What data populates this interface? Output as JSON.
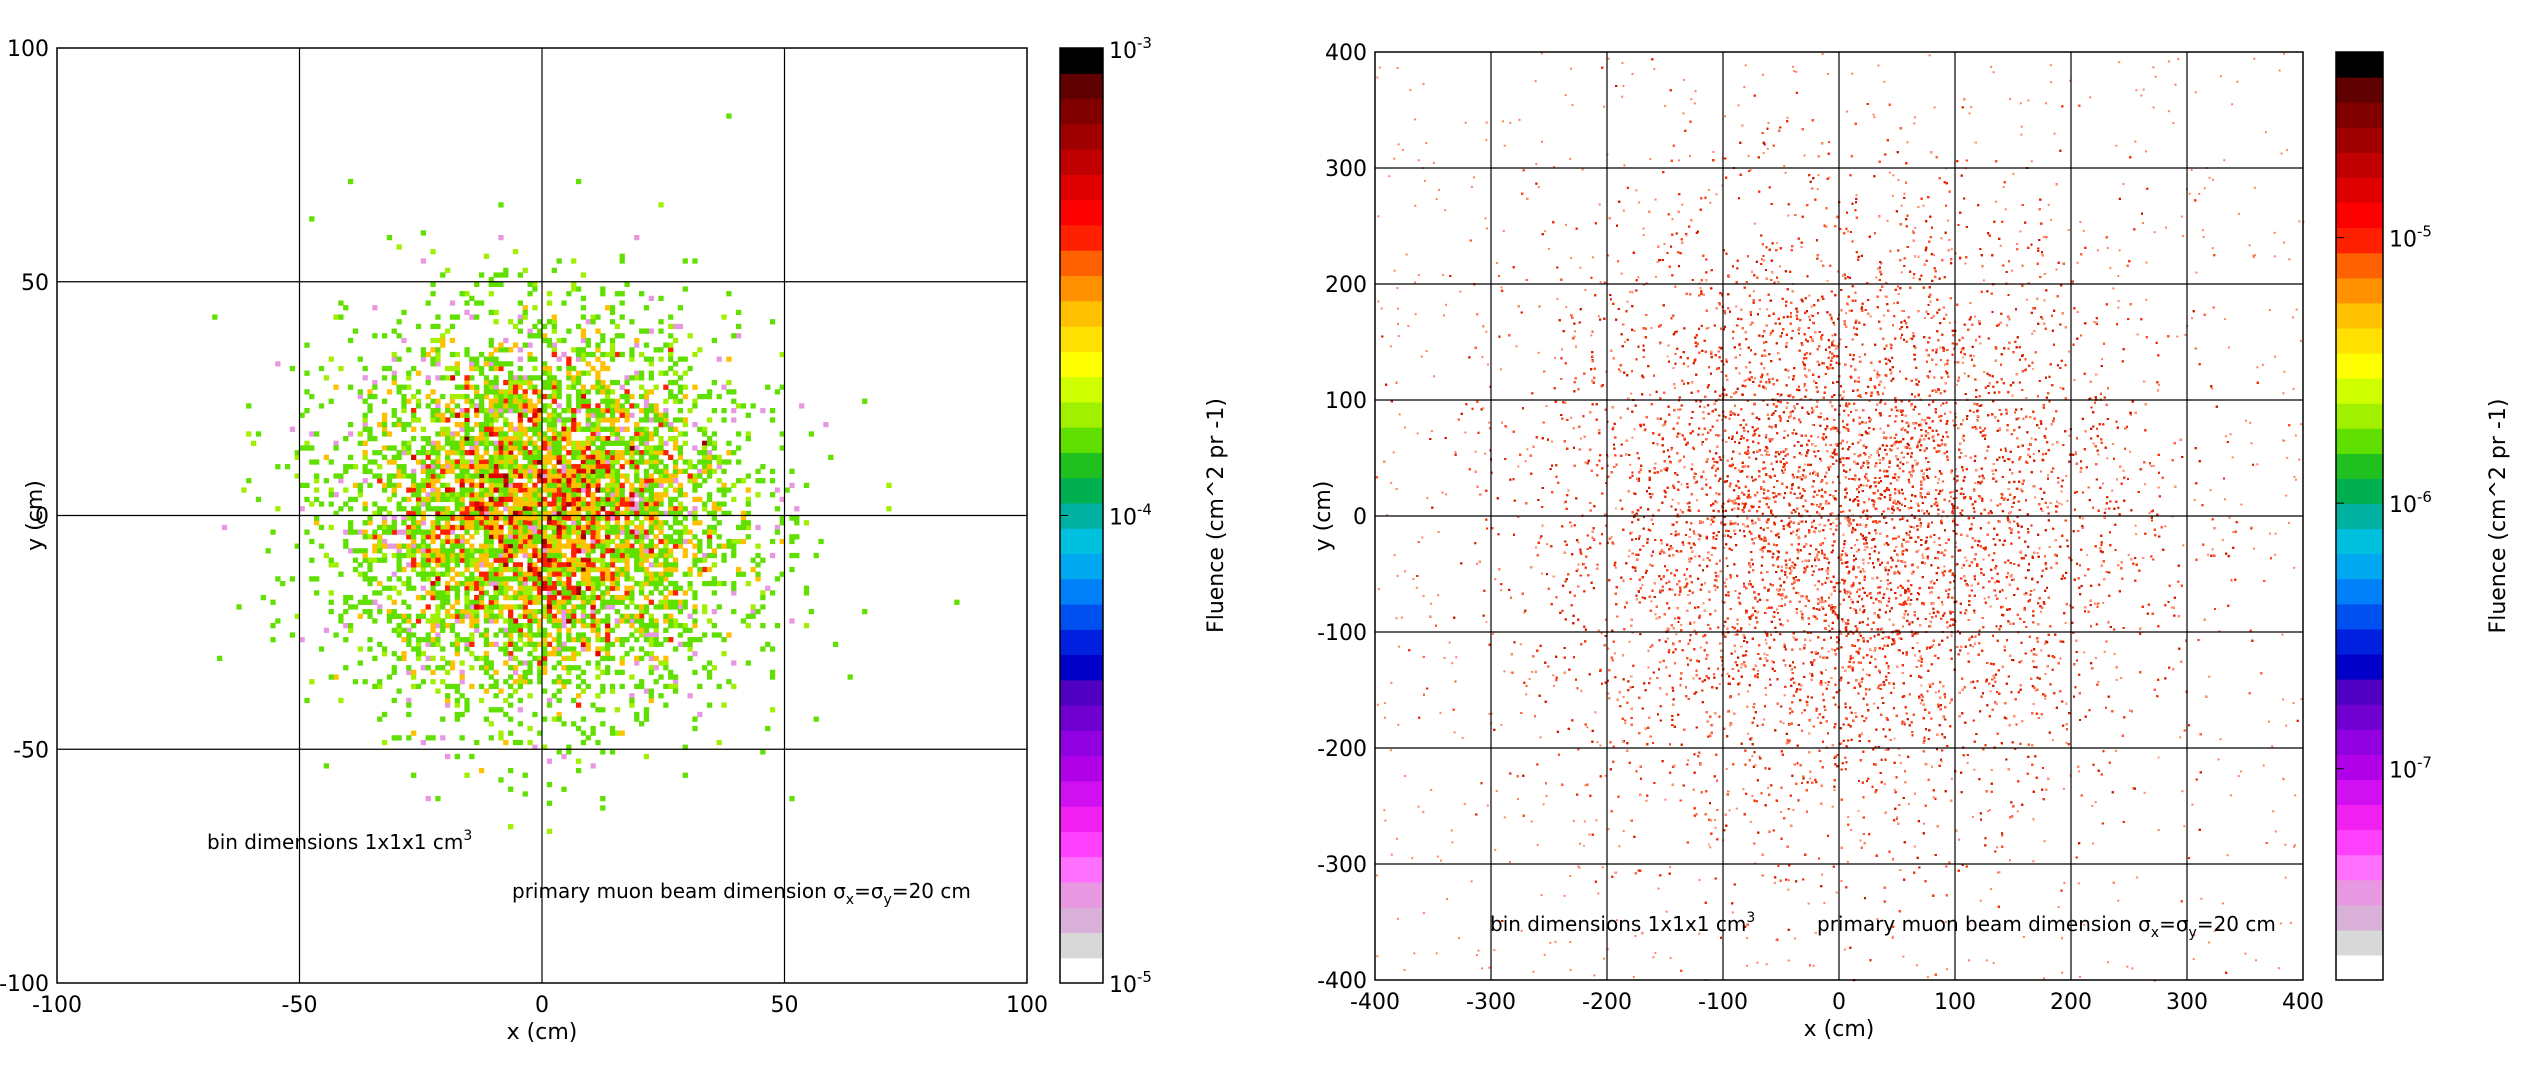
{
  "chart_data": [
    {
      "type": "heatmap",
      "xlabel": "x (cm)",
      "ylabel": "y (cm)",
      "xlim": [
        -100,
        100
      ],
      "ylim": [
        -100,
        100
      ],
      "xticks": [
        "-100",
        "-50",
        "0",
        "50",
        "100"
      ],
      "xtick_values": [
        -100,
        -50,
        0,
        50,
        100
      ],
      "yticks": [
        "-100",
        "-50",
        "0",
        "50",
        "100"
      ],
      "ytick_values": [
        -100,
        -50,
        0,
        50,
        100
      ],
      "grid": true,
      "distribution": {
        "shape": "gaussian",
        "center": [
          0,
          0
        ],
        "sigma_cm": 20,
        "bin_cm": 1
      },
      "colorbar": {
        "label": "Fluence (cm^2 pr -1)",
        "scale": "log",
        "range": [
          1e-05,
          0.001
        ],
        "tick_labels": [
          {
            "base": "10",
            "exp": "-3",
            "value": 0.001
          },
          {
            "base": "10",
            "exp": "-4",
            "value": 0.0001
          },
          {
            "base": "10",
            "exp": "-5",
            "value": 1e-05
          }
        ]
      },
      "annotations": {
        "bin_prefix": "bin dimensions 1x1x1 cm",
        "bin_sup": "3",
        "beam_prefix": "primary muon beam dimension σ",
        "beam_sub_x": "x",
        "beam_eq": "=σ",
        "beam_sub_y": "y",
        "beam_suffix": "=20 cm"
      }
    },
    {
      "type": "heatmap",
      "xlabel": "x (cm)",
      "ylabel": "y (cm)",
      "xlim": [
        -400,
        400
      ],
      "ylim": [
        -400,
        400
      ],
      "xticks": [
        "-400",
        "-300",
        "-200",
        "-100",
        "0",
        "100",
        "200",
        "300",
        "400"
      ],
      "xtick_values": [
        -400,
        -300,
        -200,
        -100,
        0,
        100,
        200,
        300,
        400
      ],
      "yticks": [
        "-400",
        "-300",
        "-200",
        "-100",
        "0",
        "100",
        "200",
        "300",
        "400"
      ],
      "ytick_values": [
        -400,
        -300,
        -200,
        -100,
        0,
        100,
        200,
        300,
        400
      ],
      "grid": true,
      "distribution": {
        "shape": "gaussian-sparse",
        "center": [
          0,
          0
        ],
        "sigma_cm": 130,
        "bin_cm": 1
      },
      "colorbar": {
        "label": "Fluence (cm^2 pr -1)",
        "scale": "log",
        "range": [
          1.6e-08,
          5e-05
        ],
        "tick_labels": [
          {
            "base": "10",
            "exp": "-5",
            "value": 1e-05
          },
          {
            "base": "10",
            "exp": "-6",
            "value": 1e-06
          },
          {
            "base": "10",
            "exp": "-7",
            "value": 1e-07
          }
        ]
      },
      "annotations": {
        "bin_prefix": "bin dimensions 1x1x1 cm",
        "bin_sup": "3",
        "beam_prefix": "primary muon beam dimension σ",
        "beam_sub_x": "x",
        "beam_eq": "=σ",
        "beam_sub_y": "y",
        "beam_suffix": "=20 cm"
      }
    }
  ],
  "palette": [
    "#ffffff",
    "#d8d8d8",
    "#d8b0d8",
    "#e898e0",
    "#ff70ff",
    "#ff40ff",
    "#f020f0",
    "#d010f0",
    "#b000e8",
    "#9000e0",
    "#7000d0",
    "#5000c0",
    "#0000c8",
    "#0020e0",
    "#0050f0",
    "#0080f8",
    "#00a8f0",
    "#00c0e0",
    "#00b0a0",
    "#00b050",
    "#20c020",
    "#60e000",
    "#a0f000",
    "#d0ff00",
    "#ffff00",
    "#ffe000",
    "#ffc000",
    "#ff9000",
    "#ff6000",
    "#ff2000",
    "#ff0000",
    "#e00000",
    "#c00000",
    "#a00000",
    "#800000",
    "#600000",
    "#000000"
  ]
}
